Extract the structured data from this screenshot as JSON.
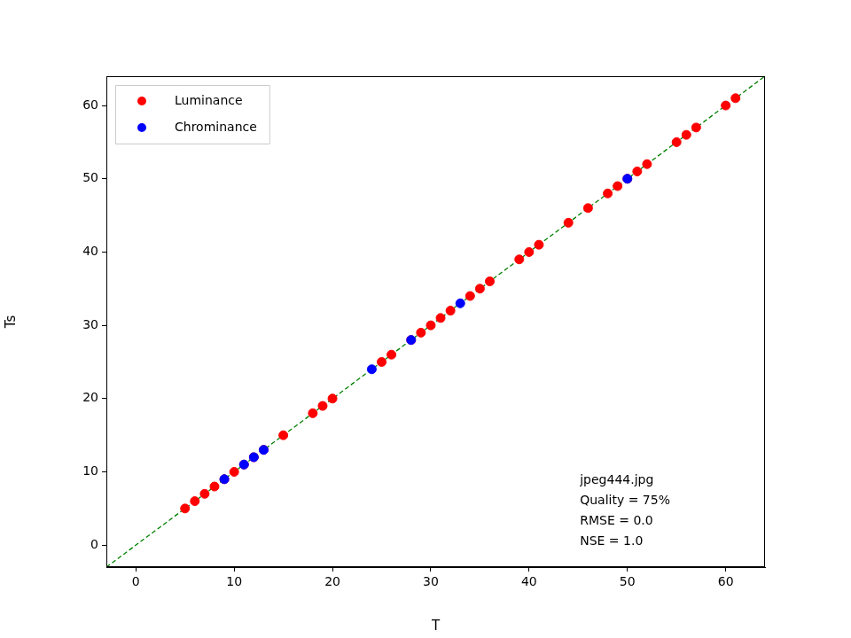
{
  "chart_data": {
    "type": "scatter",
    "xlabel": "T",
    "ylabel": "Ts",
    "xlim": [
      -3,
      64
    ],
    "ylim": [
      -3,
      64
    ],
    "xticks": [
      0,
      10,
      20,
      30,
      40,
      50,
      60
    ],
    "yticks": [
      0,
      10,
      20,
      30,
      40,
      50,
      60
    ],
    "grid": false,
    "legend": "upper left",
    "series": [
      {
        "name": "Luminance",
        "color": "#ff0000",
        "marker": "circle",
        "x": [
          5,
          6,
          7,
          8,
          9,
          10,
          11,
          12,
          13,
          15,
          18,
          19,
          20,
          25,
          26,
          28,
          29,
          30,
          31,
          32,
          34,
          35,
          36,
          39,
          40,
          41,
          44,
          46,
          48,
          49,
          50,
          51,
          52,
          55,
          56,
          57,
          60,
          61
        ],
        "values": [
          5,
          6,
          7,
          8,
          9,
          10,
          11,
          12,
          13,
          15,
          18,
          19,
          20,
          25,
          26,
          28,
          29,
          30,
          31,
          32,
          34,
          35,
          36,
          39,
          40,
          41,
          44,
          46,
          48,
          49,
          50,
          51,
          52,
          55,
          56,
          57,
          60,
          61
        ]
      },
      {
        "name": "Chrominance",
        "color": "#0000ff",
        "marker": "circle",
        "x": [
          9,
          11,
          12,
          13,
          24,
          28,
          33,
          50
        ],
        "values": [
          9,
          11,
          12,
          13,
          24,
          28,
          33,
          50
        ]
      }
    ],
    "annotations": [
      "jpeg444.jpg",
      "Quality = 75%",
      "RMSE = 0.0",
      "NSE = 1.0"
    ]
  }
}
